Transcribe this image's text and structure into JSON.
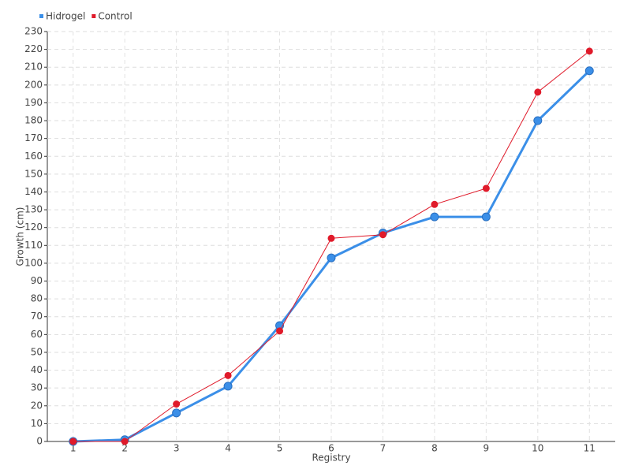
{
  "chart_data": {
    "type": "line",
    "x_label": "Registry",
    "y_label": "Growth (cm)",
    "categories": [
      "1",
      "2",
      "3",
      "4",
      "5",
      "6",
      "7",
      "8",
      "9",
      "10",
      "11"
    ],
    "series": [
      {
        "name": "Hidrogel",
        "color": "#3b8fe8",
        "values": [
          0,
          1,
          16,
          31,
          65,
          103,
          117,
          126,
          126,
          180,
          208
        ]
      },
      {
        "name": "Control",
        "color": "#e01a2a",
        "values": [
          0,
          0,
          21,
          37,
          62,
          114,
          116,
          133,
          142,
          196,
          219
        ]
      }
    ],
    "ylim": [
      0,
      230
    ],
    "yticks": [
      0,
      10,
      20,
      30,
      40,
      50,
      60,
      70,
      80,
      90,
      100,
      110,
      120,
      130,
      140,
      150,
      160,
      170,
      180,
      190,
      200,
      210,
      220,
      230
    ],
    "grid": true,
    "legend": "top-left"
  }
}
